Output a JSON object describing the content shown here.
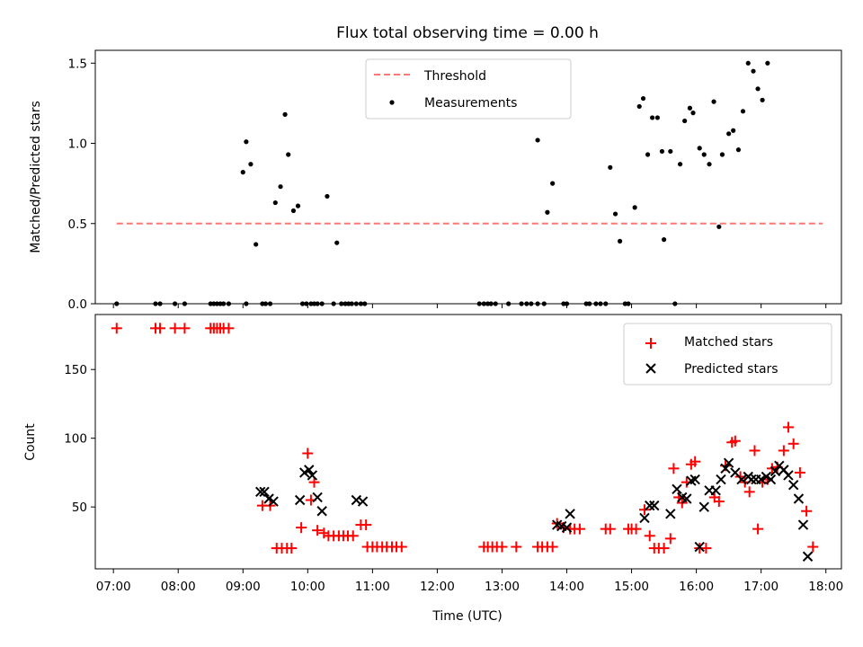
{
  "chart_data": {
    "title": "Flux total observing time = 0.00 h",
    "xlabel": "Time (UTC)",
    "x_ticks": [
      "07:00",
      "08:00",
      "09:00",
      "10:00",
      "11:00",
      "12:00",
      "13:00",
      "14:00",
      "15:00",
      "16:00",
      "17:00",
      "18:00"
    ],
    "x_range_hours": [
      6.72,
      18.24
    ],
    "panels": [
      {
        "type": "scatter",
        "ylabel": "Matched/Predicted stars",
        "ylim": [
          0,
          1.58
        ],
        "y_ticks": [
          "0.0",
          "0.5",
          "1.0",
          "1.5"
        ],
        "y_tick_values": [
          0,
          0.5,
          1.0,
          1.5
        ],
        "legend": {
          "position": "top-center",
          "entries": [
            "Threshold",
            "Measurements"
          ]
        },
        "threshold": {
          "name": "Threshold",
          "value": 0.5,
          "x_start": 7.05,
          "x_end": 17.95,
          "color": "#ff7777",
          "style": "dashed"
        },
        "series": [
          {
            "name": "Measurements",
            "marker": "dot",
            "color": "#000000",
            "points": [
              [
                7.05,
                0
              ],
              [
                7.65,
                0
              ],
              [
                7.72,
                0
              ],
              [
                7.95,
                0
              ],
              [
                8.1,
                0
              ],
              [
                8.5,
                0
              ],
              [
                8.55,
                0
              ],
              [
                8.6,
                0
              ],
              [
                8.65,
                0
              ],
              [
                8.7,
                0
              ],
              [
                8.78,
                0
              ],
              [
                9.0,
                0.82
              ],
              [
                9.05,
                0
              ],
              [
                9.05,
                1.01
              ],
              [
                9.12,
                0.87
              ],
              [
                9.2,
                0.37
              ],
              [
                9.3,
                0
              ],
              [
                9.35,
                0
              ],
              [
                9.42,
                0
              ],
              [
                9.5,
                0.63
              ],
              [
                9.58,
                0.73
              ],
              [
                9.65,
                1.18
              ],
              [
                9.7,
                0.93
              ],
              [
                9.78,
                0.58
              ],
              [
                9.85,
                0.61
              ],
              [
                9.92,
                0
              ],
              [
                9.98,
                0
              ],
              [
                10.05,
                0
              ],
              [
                10.1,
                0
              ],
              [
                10.15,
                0
              ],
              [
                10.22,
                0
              ],
              [
                10.3,
                0.67
              ],
              [
                10.4,
                0
              ],
              [
                10.45,
                0.38
              ],
              [
                10.52,
                0
              ],
              [
                10.58,
                0
              ],
              [
                10.63,
                0
              ],
              [
                10.68,
                0
              ],
              [
                10.75,
                0
              ],
              [
                10.82,
                0
              ],
              [
                10.88,
                0
              ],
              [
                12.65,
                0
              ],
              [
                12.72,
                0
              ],
              [
                12.78,
                0
              ],
              [
                12.83,
                0
              ],
              [
                12.9,
                0
              ],
              [
                13.1,
                0
              ],
              [
                13.3,
                0
              ],
              [
                13.38,
                0
              ],
              [
                13.45,
                0
              ],
              [
                13.55,
                1.02
              ],
              [
                13.55,
                0
              ],
              [
                13.65,
                0
              ],
              [
                13.7,
                0.57
              ],
              [
                13.78,
                0.75
              ],
              [
                13.95,
                0
              ],
              [
                14.0,
                0
              ],
              [
                14.3,
                0
              ],
              [
                14.35,
                0
              ],
              [
                14.45,
                0
              ],
              [
                14.52,
                0
              ],
              [
                14.6,
                0
              ],
              [
                14.67,
                0.85
              ],
              [
                14.75,
                0.56
              ],
              [
                14.82,
                0.39
              ],
              [
                14.9,
                0
              ],
              [
                14.95,
                0
              ],
              [
                15.05,
                0.6
              ],
              [
                15.12,
                1.23
              ],
              [
                15.18,
                1.28
              ],
              [
                15.25,
                0.93
              ],
              [
                15.32,
                1.16
              ],
              [
                15.4,
                1.16
              ],
              [
                15.47,
                0.95
              ],
              [
                15.5,
                0.4
              ],
              [
                15.6,
                0.95
              ],
              [
                15.67,
                0
              ],
              [
                15.75,
                0.87
              ],
              [
                15.82,
                1.14
              ],
              [
                15.9,
                1.22
              ],
              [
                15.95,
                1.19
              ],
              [
                16.05,
                0.97
              ],
              [
                16.12,
                0.93
              ],
              [
                16.2,
                0.87
              ],
              [
                16.27,
                1.26
              ],
              [
                16.35,
                0.48
              ],
              [
                16.4,
                0.93
              ],
              [
                16.5,
                1.06
              ],
              [
                16.57,
                1.08
              ],
              [
                16.65,
                0.96
              ],
              [
                16.72,
                1.2
              ],
              [
                16.8,
                1.5
              ],
              [
                16.88,
                1.45
              ],
              [
                16.95,
                1.34
              ],
              [
                17.02,
                1.27
              ],
              [
                17.1,
                1.5
              ]
            ]
          }
        ]
      },
      {
        "type": "scatter",
        "ylabel": "Count",
        "ylim": [
          5,
          190
        ],
        "y_ticks": [
          "50",
          "100",
          "150"
        ],
        "y_tick_values": [
          50,
          100,
          150
        ],
        "legend": {
          "position": "top-right",
          "entries": [
            "Matched stars",
            "Predicted stars"
          ]
        },
        "series": [
          {
            "name": "Matched stars",
            "marker": "plus",
            "color": "#ff0000",
            "points": [
              [
                7.05,
                180
              ],
              [
                7.65,
                180
              ],
              [
                7.72,
                180
              ],
              [
                7.95,
                180
              ],
              [
                8.1,
                180
              ],
              [
                8.5,
                180
              ],
              [
                8.55,
                180
              ],
              [
                8.6,
                180
              ],
              [
                8.65,
                180
              ],
              [
                8.7,
                180
              ],
              [
                8.78,
                180
              ],
              [
                9.3,
                51
              ],
              [
                9.42,
                51
              ],
              [
                9.52,
                20
              ],
              [
                9.6,
                20
              ],
              [
                9.68,
                20
              ],
              [
                9.75,
                20
              ],
              [
                9.9,
                35
              ],
              [
                10.05,
                55
              ],
              [
                10.0,
                89
              ],
              [
                10.1,
                68
              ],
              [
                10.15,
                33
              ],
              [
                10.25,
                31
              ],
              [
                10.32,
                29
              ],
              [
                10.4,
                29
              ],
              [
                10.48,
                29
              ],
              [
                10.55,
                29
              ],
              [
                10.62,
                29
              ],
              [
                10.7,
                29
              ],
              [
                10.82,
                37
              ],
              [
                10.9,
                37
              ],
              [
                10.92,
                21
              ],
              [
                11.0,
                21
              ],
              [
                11.07,
                21
              ],
              [
                11.15,
                21
              ],
              [
                11.22,
                21
              ],
              [
                11.3,
                21
              ],
              [
                11.37,
                21
              ],
              [
                11.45,
                21
              ],
              [
                12.72,
                21
              ],
              [
                12.78,
                21
              ],
              [
                12.85,
                21
              ],
              [
                12.92,
                21
              ],
              [
                13.0,
                21
              ],
              [
                13.22,
                21
              ],
              [
                13.55,
                21
              ],
              [
                13.62,
                21
              ],
              [
                13.7,
                21
              ],
              [
                13.78,
                21
              ],
              [
                13.85,
                38
              ],
              [
                13.95,
                35
              ],
              [
                14.05,
                34
              ],
              [
                14.12,
                34
              ],
              [
                14.2,
                34
              ],
              [
                14.6,
                34
              ],
              [
                14.67,
                34
              ],
              [
                14.95,
                34
              ],
              [
                15.0,
                34
              ],
              [
                15.07,
                34
              ],
              [
                15.2,
                48
              ],
              [
                15.28,
                29
              ],
              [
                15.35,
                20
              ],
              [
                15.42,
                20
              ],
              [
                15.5,
                20
              ],
              [
                15.6,
                27
              ],
              [
                15.65,
                78
              ],
              [
                15.73,
                57
              ],
              [
                15.78,
                53
              ],
              [
                15.85,
                68
              ],
              [
                15.92,
                81
              ],
              [
                15.98,
                83
              ],
              [
                16.05,
                20
              ],
              [
                16.15,
                20
              ],
              [
                16.28,
                57
              ],
              [
                16.35,
                54
              ],
              [
                16.45,
                80
              ],
              [
                16.55,
                97
              ],
              [
                16.6,
                98
              ],
              [
                16.68,
                72
              ],
              [
                16.75,
                68
              ],
              [
                16.82,
                61
              ],
              [
                16.9,
                91
              ],
              [
                16.95,
                34
              ],
              [
                17.02,
                68
              ],
              [
                17.1,
                70
              ],
              [
                17.17,
                78
              ],
              [
                17.25,
                79
              ],
              [
                17.35,
                91
              ],
              [
                17.42,
                108
              ],
              [
                17.5,
                96
              ],
              [
                17.6,
                75
              ],
              [
                17.7,
                47
              ],
              [
                17.8,
                21
              ]
            ]
          },
          {
            "name": "Predicted stars",
            "marker": "x",
            "color": "#000000",
            "points": [
              [
                9.27,
                61
              ],
              [
                9.33,
                61
              ],
              [
                9.4,
                56
              ],
              [
                9.47,
                54
              ],
              [
                9.88,
                55
              ],
              [
                9.95,
                75
              ],
              [
                10.02,
                77
              ],
              [
                10.07,
                73
              ],
              [
                10.15,
                57
              ],
              [
                10.22,
                47
              ],
              [
                10.75,
                55
              ],
              [
                10.85,
                54
              ],
              [
                13.85,
                37
              ],
              [
                13.92,
                36
              ],
              [
                14.0,
                35
              ],
              [
                14.05,
                45
              ],
              [
                15.2,
                42
              ],
              [
                15.28,
                51
              ],
              [
                15.35,
                51
              ],
              [
                15.6,
                45
              ],
              [
                15.7,
                63
              ],
              [
                15.78,
                57
              ],
              [
                15.85,
                56
              ],
              [
                15.92,
                69
              ],
              [
                15.98,
                70
              ],
              [
                16.05,
                21
              ],
              [
                16.12,
                50
              ],
              [
                16.2,
                62
              ],
              [
                16.3,
                62
              ],
              [
                16.38,
                70
              ],
              [
                16.45,
                78
              ],
              [
                16.5,
                82
              ],
              [
                16.6,
                75
              ],
              [
                16.7,
                70
              ],
              [
                16.8,
                72
              ],
              [
                16.85,
                70
              ],
              [
                16.92,
                70
              ],
              [
                17.0,
                70
              ],
              [
                17.08,
                72
              ],
              [
                17.15,
                70
              ],
              [
                17.22,
                76
              ],
              [
                17.28,
                80
              ],
              [
                17.35,
                77
              ],
              [
                17.42,
                73
              ],
              [
                17.5,
                66
              ],
              [
                17.58,
                56
              ],
              [
                17.65,
                37
              ],
              [
                17.72,
                14
              ]
            ]
          }
        ]
      }
    ]
  }
}
